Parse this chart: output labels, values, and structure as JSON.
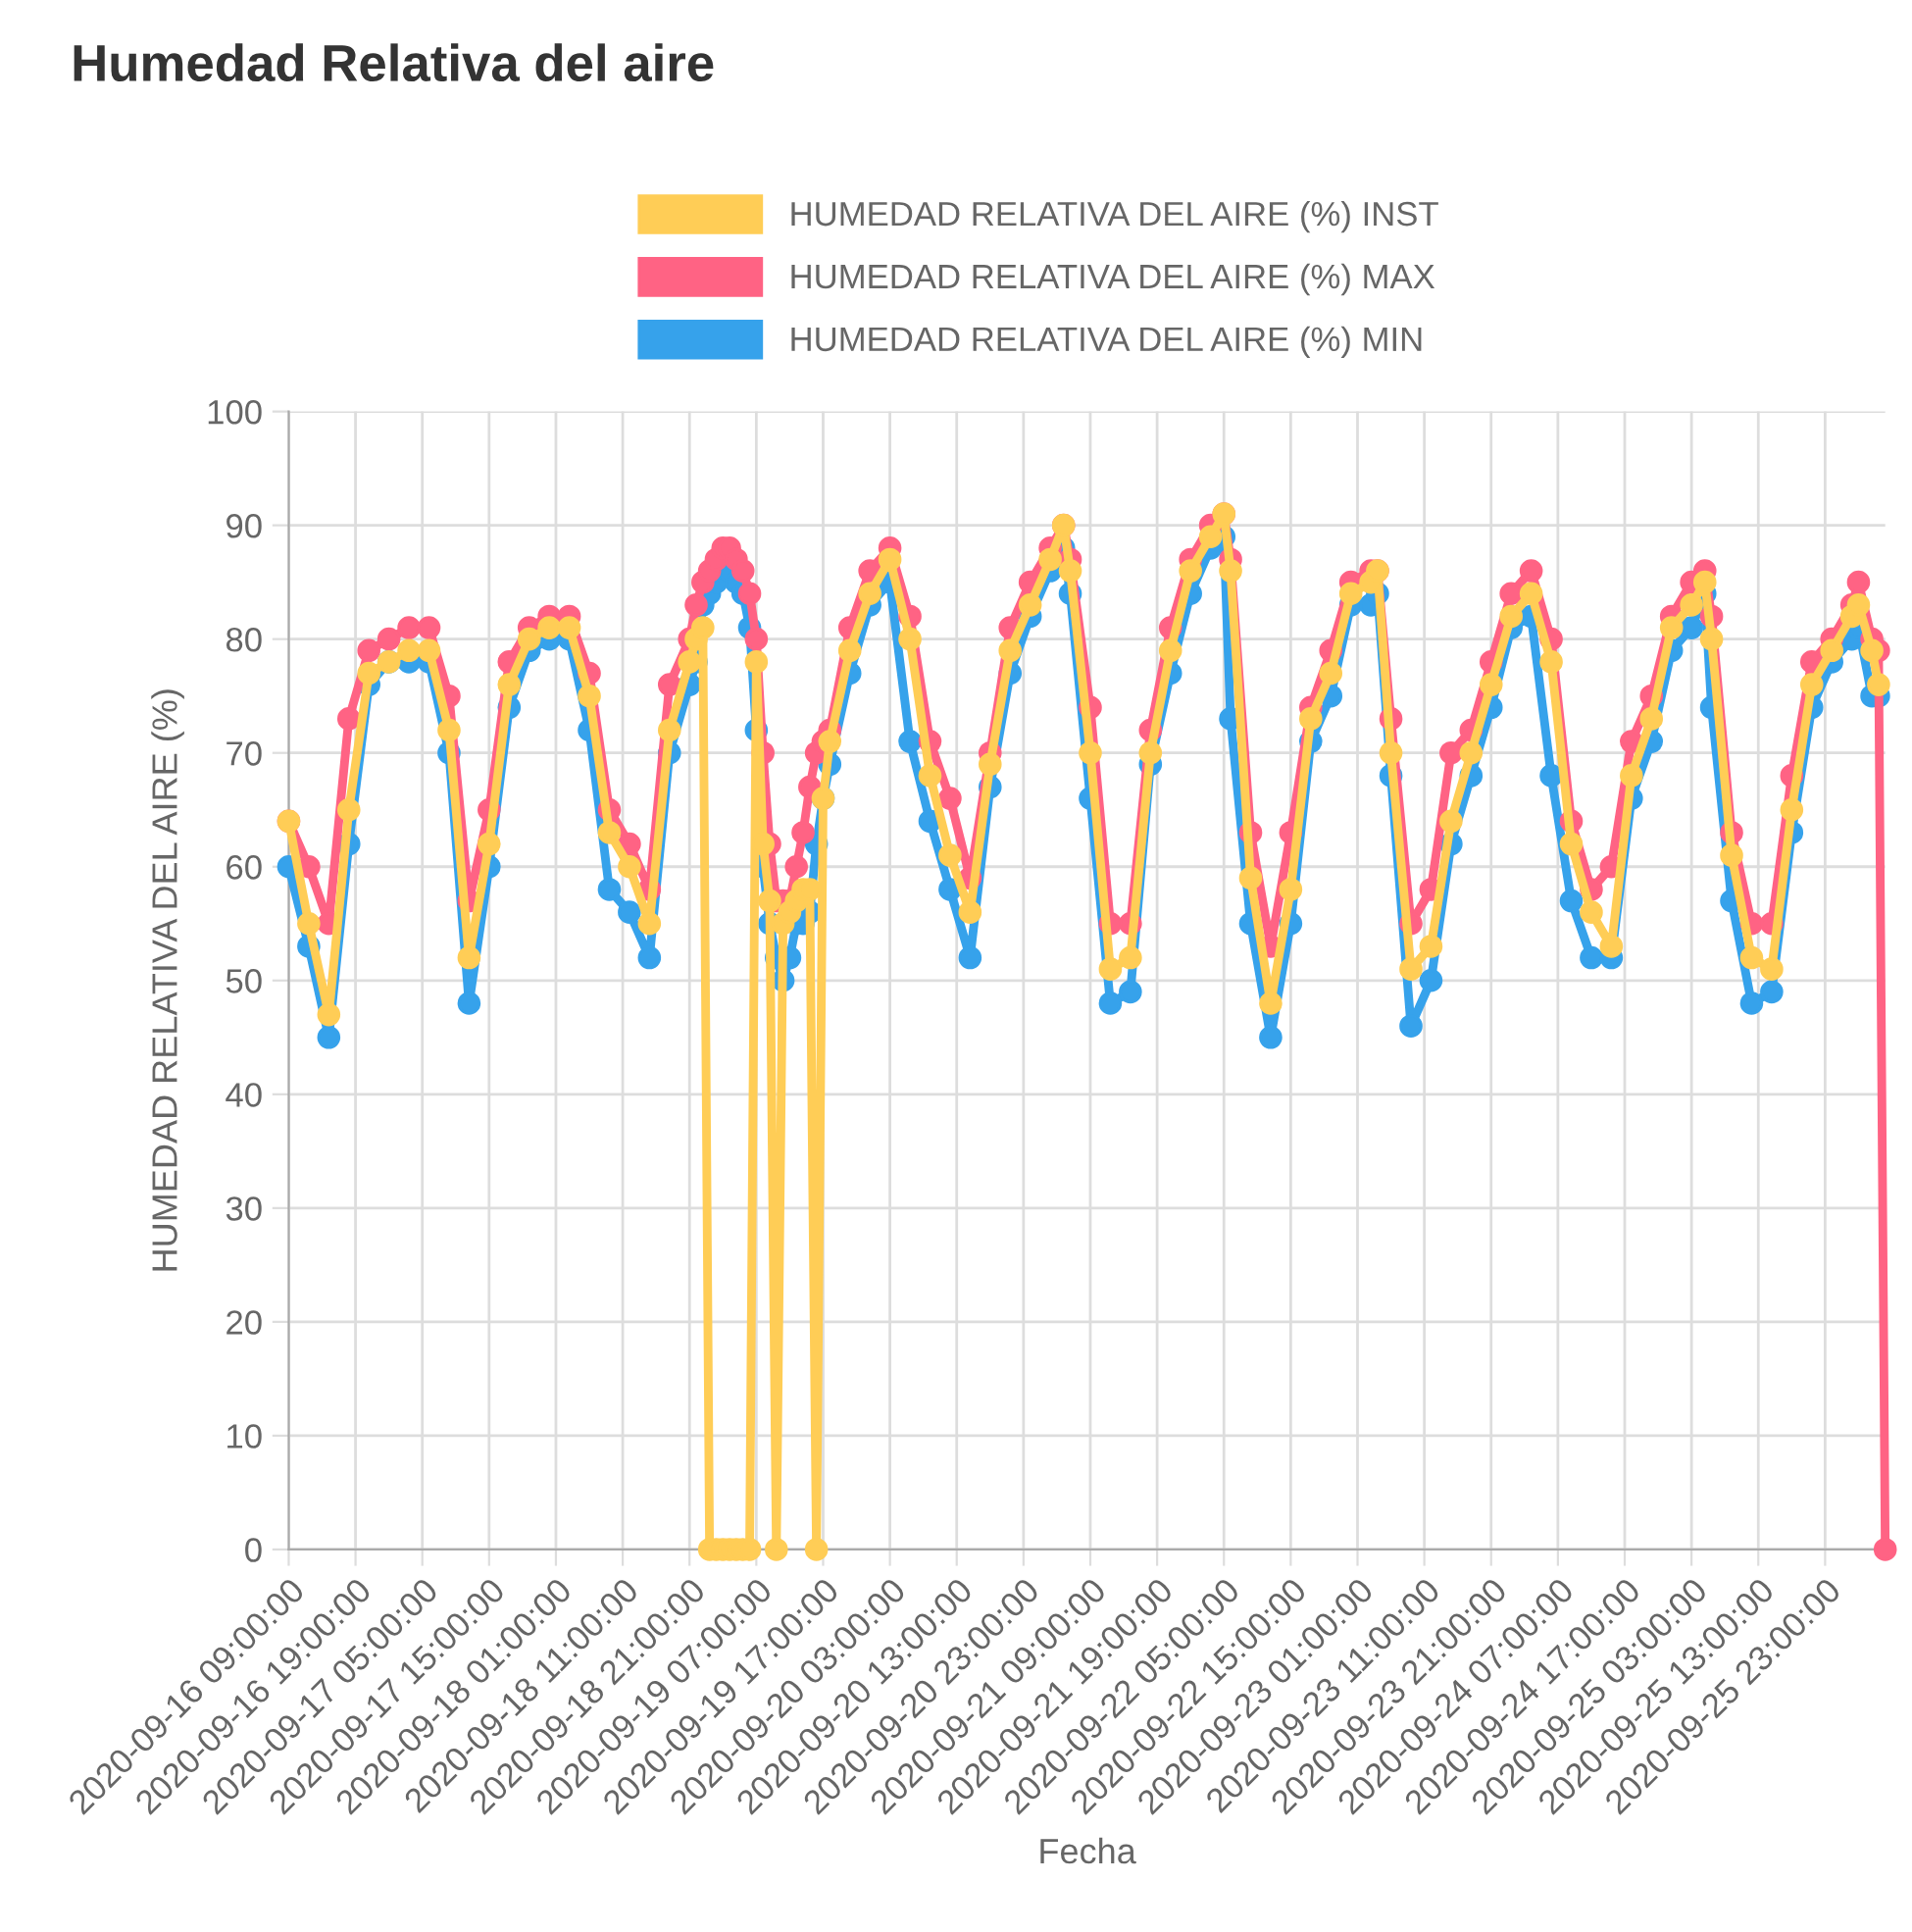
{
  "chart_data": {
    "type": "line",
    "title": "Humedad Relativa del aire",
    "xlabel": "Fecha",
    "ylabel": "HUMEDAD RELATIVA DEL AIRE (%)",
    "x": [
      "2020-09-16T09:00",
      "2020-09-16T12:00",
      "2020-09-16T15:00",
      "2020-09-16T18:00",
      "2020-09-16T21:00",
      "2020-09-17T00:00",
      "2020-09-17T03:00",
      "2020-09-17T06:00",
      "2020-09-17T09:00",
      "2020-09-17T12:00",
      "2020-09-17T15:00",
      "2020-09-17T18:00",
      "2020-09-17T21:00",
      "2020-09-18T00:00",
      "2020-09-18T03:00",
      "2020-09-18T06:00",
      "2020-09-18T09:00",
      "2020-09-18T12:00",
      "2020-09-18T15:00",
      "2020-09-18T18:00",
      "2020-09-18T21:00",
      "2020-09-18T22:00",
      "2020-09-18T23:00",
      "2020-09-19T00:00",
      "2020-09-19T01:00",
      "2020-09-19T02:00",
      "2020-09-19T03:00",
      "2020-09-19T04:00",
      "2020-09-19T05:00",
      "2020-09-19T06:00",
      "2020-09-19T07:00",
      "2020-09-19T08:00",
      "2020-09-19T09:00",
      "2020-09-19T10:00",
      "2020-09-19T11:00",
      "2020-09-19T12:00",
      "2020-09-19T13:00",
      "2020-09-19T14:00",
      "2020-09-19T15:00",
      "2020-09-19T16:00",
      "2020-09-19T17:00",
      "2020-09-19T18:00",
      "2020-09-19T21:00",
      "2020-09-20T00:00",
      "2020-09-20T03:00",
      "2020-09-20T06:00",
      "2020-09-20T09:00",
      "2020-09-20T12:00",
      "2020-09-20T15:00",
      "2020-09-20T18:00",
      "2020-09-20T21:00",
      "2020-09-21T00:00",
      "2020-09-21T03:00",
      "2020-09-21T05:00",
      "2020-09-21T06:00",
      "2020-09-21T09:00",
      "2020-09-21T12:00",
      "2020-09-21T15:00",
      "2020-09-21T18:00",
      "2020-09-21T21:00",
      "2020-09-22T00:00",
      "2020-09-22T03:00",
      "2020-09-22T05:00",
      "2020-09-22T06:00",
      "2020-09-22T09:00",
      "2020-09-22T12:00",
      "2020-09-22T15:00",
      "2020-09-22T18:00",
      "2020-09-22T21:00",
      "2020-09-23T00:00",
      "2020-09-23T03:00",
      "2020-09-23T04:00",
      "2020-09-23T06:00",
      "2020-09-23T09:00",
      "2020-09-23T12:00",
      "2020-09-23T15:00",
      "2020-09-23T18:00",
      "2020-09-23T21:00",
      "2020-09-24T00:00",
      "2020-09-24T03:00",
      "2020-09-24T06:00",
      "2020-09-24T09:00",
      "2020-09-24T12:00",
      "2020-09-24T15:00",
      "2020-09-24T18:00",
      "2020-09-24T21:00",
      "2020-09-25T00:00",
      "2020-09-25T03:00",
      "2020-09-25T05:00",
      "2020-09-25T06:00",
      "2020-09-25T09:00",
      "2020-09-25T12:00",
      "2020-09-25T15:00",
      "2020-09-25T18:00",
      "2020-09-25T21:00",
      "2020-09-26T00:00",
      "2020-09-26T03:00",
      "2020-09-26T04:00",
      "2020-09-26T06:00",
      "2020-09-26T07:00",
      "2020-09-26T08:00"
    ],
    "series": [
      {
        "name": "HUMEDAD RELATIVA DEL AIRE (%) INST",
        "color": "#ffcd56",
        "values": [
          64,
          55,
          47,
          65,
          77,
          78,
          79,
          79,
          72,
          52,
          62,
          76,
          80,
          81,
          81,
          75,
          63,
          60,
          55,
          72,
          78,
          80,
          81,
          0,
          0,
          0,
          0,
          0,
          0,
          0,
          78,
          62,
          57,
          0,
          55,
          56,
          57,
          58,
          58,
          0,
          66,
          71,
          79,
          84,
          87,
          80,
          68,
          61,
          56,
          69,
          79,
          83,
          87,
          90,
          86,
          70,
          51,
          52,
          70,
          79,
          86,
          89,
          91,
          86,
          59,
          48,
          58,
          73,
          77,
          84,
          85,
          86,
          70,
          51,
          53,
          64,
          70,
          76,
          82,
          84,
          78,
          62,
          56,
          53,
          68,
          73,
          81,
          83,
          85,
          80,
          61,
          52,
          51,
          65,
          76,
          79,
          82,
          83,
          79,
          76,
          null
        ]
      },
      {
        "name": "HUMEDAD RELATIVA DEL AIRE (%) MAX",
        "color": "#ff6384",
        "values": [
          64,
          60,
          55,
          73,
          79,
          80,
          81,
          81,
          75,
          57,
          65,
          78,
          81,
          82,
          82,
          77,
          65,
          62,
          58,
          76,
          80,
          83,
          85,
          86,
          87,
          88,
          88,
          87,
          86,
          84,
          80,
          70,
          62,
          57,
          57,
          57,
          60,
          63,
          67,
          70,
          71,
          72,
          81,
          86,
          88,
          82,
          71,
          66,
          59,
          70,
          81,
          85,
          88,
          90,
          87,
          74,
          55,
          55,
          72,
          81,
          87,
          90,
          91,
          87,
          63,
          53,
          63,
          74,
          79,
          85,
          86,
          86,
          73,
          55,
          58,
          70,
          72,
          78,
          84,
          86,
          80,
          64,
          58,
          60,
          71,
          75,
          82,
          85,
          86,
          82,
          63,
          55,
          55,
          68,
          78,
          80,
          83,
          85,
          80,
          79,
          0
        ]
      },
      {
        "name": "HUMEDAD RELATIVA DEL AIRE (%) MIN",
        "color": "#36a2eb",
        "values": [
          60,
          53,
          45,
          62,
          76,
          78,
          78,
          78,
          70,
          48,
          60,
          74,
          79,
          80,
          80,
          72,
          58,
          56,
          52,
          70,
          76,
          78,
          83,
          84,
          85,
          86,
          86,
          85,
          84,
          81,
          72,
          60,
          55,
          52,
          50,
          52,
          55,
          55,
          56,
          62,
          66,
          69,
          77,
          83,
          85,
          71,
          64,
          58,
          52,
          67,
          77,
          82,
          86,
          88,
          84,
          66,
          48,
          49,
          69,
          77,
          84,
          88,
          89,
          73,
          55,
          45,
          55,
          71,
          75,
          83,
          83,
          84,
          68,
          46,
          50,
          62,
          68,
          74,
          81,
          82,
          68,
          57,
          52,
          52,
          66,
          71,
          79,
          81,
          84,
          74,
          57,
          48,
          49,
          63,
          74,
          78,
          80,
          81,
          75,
          75,
          null
        ]
      }
    ],
    "xlim": [
      "2020-09-16T09:00",
      "2020-09-26T08:00"
    ],
    "xticks": [
      {
        "value": "2020-09-16T09:00",
        "label": "2020-09-16 09:00:00"
      },
      {
        "value": "2020-09-16T19:00",
        "label": "2020-09-16 19:00:00"
      },
      {
        "value": "2020-09-17T05:00",
        "label": "2020-09-17 05:00:00"
      },
      {
        "value": "2020-09-17T15:00",
        "label": "2020-09-17 15:00:00"
      },
      {
        "value": "2020-09-18T01:00",
        "label": "2020-09-18 01:00:00"
      },
      {
        "value": "2020-09-18T11:00",
        "label": "2020-09-18 11:00:00"
      },
      {
        "value": "2020-09-18T21:00",
        "label": "2020-09-18 21:00:00"
      },
      {
        "value": "2020-09-19T07:00",
        "label": "2020-09-19 07:00:00"
      },
      {
        "value": "2020-09-19T17:00",
        "label": "2020-09-19 17:00:00"
      },
      {
        "value": "2020-09-20T03:00",
        "label": "2020-09-20 03:00:00"
      },
      {
        "value": "2020-09-20T13:00",
        "label": "2020-09-20 13:00:00"
      },
      {
        "value": "2020-09-20T23:00",
        "label": "2020-09-20 23:00:00"
      },
      {
        "value": "2020-09-21T09:00",
        "label": "2020-09-21 09:00:00"
      },
      {
        "value": "2020-09-21T19:00",
        "label": "2020-09-21 19:00:00"
      },
      {
        "value": "2020-09-22T05:00",
        "label": "2020-09-22 05:00:00"
      },
      {
        "value": "2020-09-22T15:00",
        "label": "2020-09-22 15:00:00"
      },
      {
        "value": "2020-09-23T01:00",
        "label": "2020-09-23 01:00:00"
      },
      {
        "value": "2020-09-23T11:00",
        "label": "2020-09-23 11:00:00"
      },
      {
        "value": "2020-09-23T21:00",
        "label": "2020-09-23 21:00:00"
      },
      {
        "value": "2020-09-24T07:00",
        "label": "2020-09-24 07:00:00"
      },
      {
        "value": "2020-09-24T17:00",
        "label": "2020-09-24 17:00:00"
      },
      {
        "value": "2020-09-25T03:00",
        "label": "2020-09-25 03:00:00"
      },
      {
        "value": "2020-09-25T13:00",
        "label": "2020-09-25 13:00:00"
      },
      {
        "value": "2020-09-25T23:00",
        "label": "2020-09-25 23:00:00"
      }
    ],
    "ylim": [
      0,
      100
    ],
    "yticks": [
      0,
      10,
      20,
      30,
      40,
      50,
      60,
      70,
      80,
      90,
      100
    ],
    "grid": true,
    "legend": "top",
    "marker": "circle",
    "line_style": "solid"
  }
}
